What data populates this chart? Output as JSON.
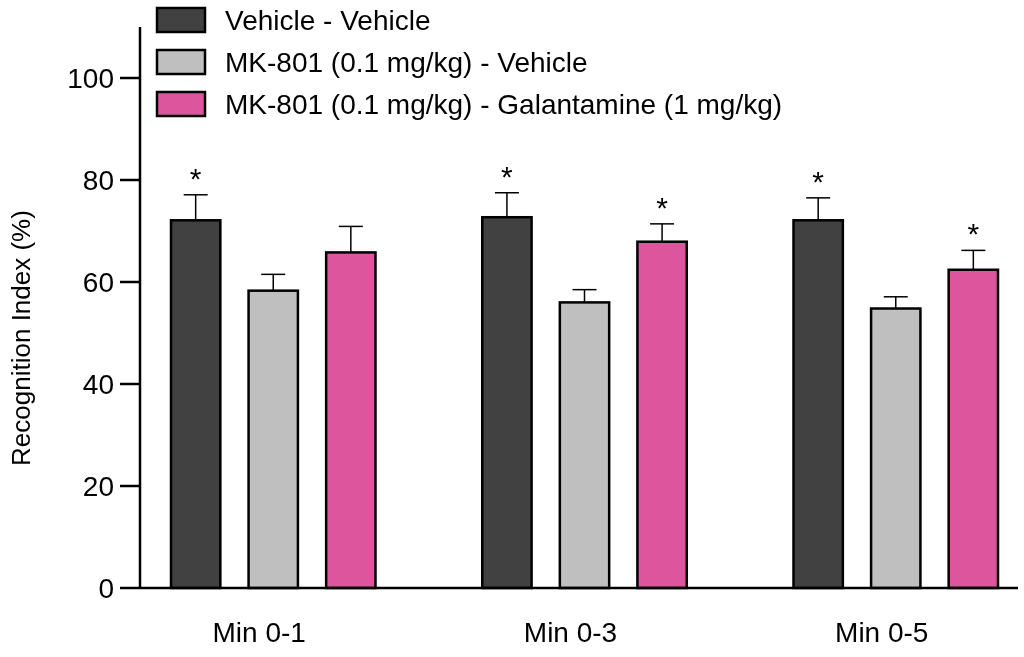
{
  "chart_data": {
    "type": "bar",
    "ylabel": "Recognition Index (%)",
    "categories": [
      "Min 0-1",
      "Min 0-3",
      "Min 0-5"
    ],
    "series": [
      {
        "name": "Vehicle - Vehicle",
        "color": "#414141",
        "values": [
          72.1,
          72.7,
          72.1
        ],
        "errors": [
          5.0,
          4.8,
          4.4
        ],
        "value_labels": [
          "*",
          "*",
          "*"
        ]
      },
      {
        "name": "MK-801 (0.1 mg/kg) - Vehicle",
        "color": "#bfbfbf",
        "values": [
          58.3,
          56.0,
          54.8
        ],
        "errors": [
          3.2,
          2.5,
          2.3
        ]
      },
      {
        "name": "MK-801 (0.1 mg/kg) - Galantamine (1 mg/kg)",
        "color": "#dc559d",
        "values": [
          65.8,
          67.9,
          62.4
        ],
        "errors": [
          5.1,
          3.5,
          3.8
        ],
        "value_labels": [
          null,
          "*",
          "*"
        ]
      }
    ],
    "ylim": [
      0,
      110
    ],
    "yticks": [
      0,
      20,
      40,
      60,
      80,
      100
    ],
    "grid": false,
    "legend": "top left"
  }
}
